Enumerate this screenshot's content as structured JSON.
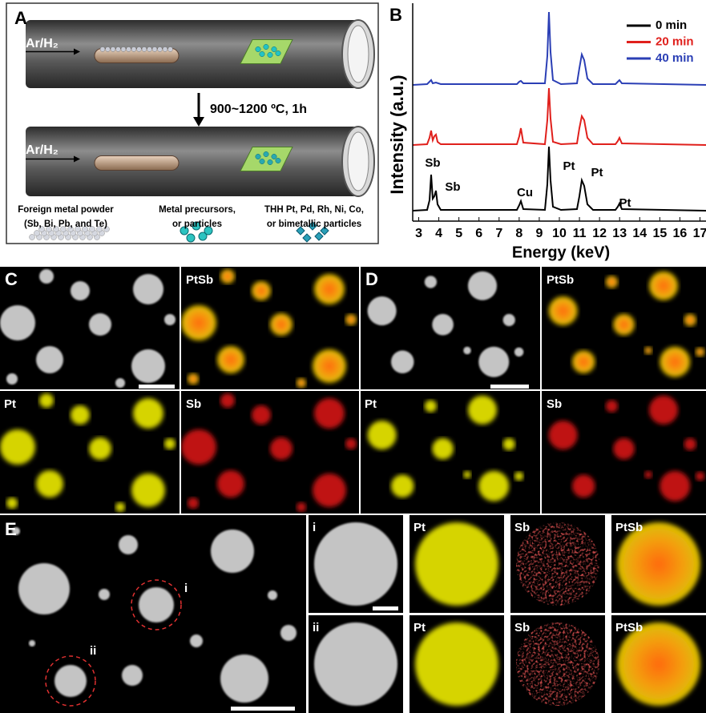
{
  "figure": {
    "panel_a": {
      "label": "A",
      "gas_top": "Ar/H₂",
      "gas_bottom": "Ar/H₂",
      "condition": "900~1200 ºC, 1h",
      "legend": [
        [
          "Foreign metal powder",
          "(Sb, Bi, Pb, and Te)"
        ],
        [
          "Metal precursors,",
          "or particles"
        ],
        [
          "THH Pt, Pd, Rh, Ni, Co,",
          "or bimetallic particles"
        ]
      ]
    },
    "panel_b": {
      "label": "B",
      "y_label": "Intensity (a.u.)",
      "x_label": "Energy (keV)",
      "xlim": [
        2.7,
        17.3
      ],
      "xticks": [
        3,
        4,
        5,
        6,
        7,
        8,
        9,
        10,
        11,
        12,
        13,
        14,
        15,
        16,
        17
      ],
      "legend": [
        {
          "name": "0 min",
          "color": "#000000"
        },
        {
          "name": "20 min",
          "color": "#e0201c"
        },
        {
          "name": "40 min",
          "color": "#2b3fb5"
        }
      ],
      "peaks": [
        "Sb",
        "Sb",
        "Cu",
        "Pt",
        "Pt",
        "Pt"
      ]
    },
    "panel_c": {
      "label": "C",
      "maps": [
        "PtSb",
        "Pt",
        "Sb"
      ]
    },
    "panel_d": {
      "label": "D",
      "maps": [
        "PtSb",
        "Pt",
        "Sb"
      ]
    },
    "panel_e": {
      "label": "E",
      "regions": [
        "i",
        "ii"
      ],
      "rows": [
        "i",
        "ii"
      ],
      "maps": [
        "Pt",
        "Sb",
        "PtSb"
      ]
    }
  }
}
